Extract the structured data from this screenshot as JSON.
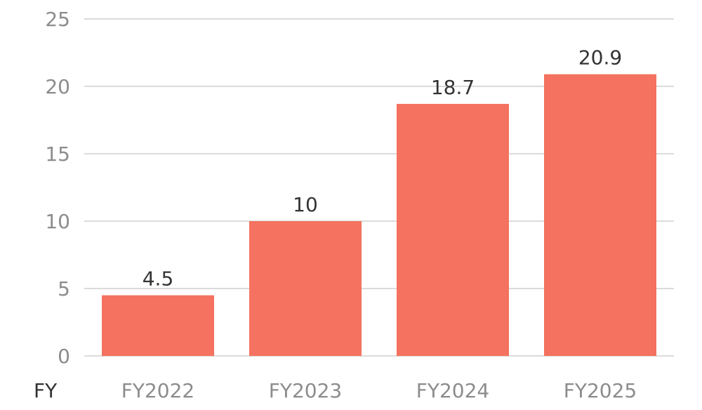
{
  "chart_data": {
    "type": "bar",
    "categories": [
      "FY2022",
      "FY2023",
      "FY2024",
      "FY2025"
    ],
    "values": [
      4.5,
      10,
      18.7,
      20.9
    ],
    "data_labels": [
      "4.5",
      "10",
      "18.7",
      "20.9"
    ],
    "title": "",
    "xlabel": "FY",
    "ylabel": "",
    "ylim": [
      0,
      25
    ],
    "yticks": [
      "0",
      "5",
      "10",
      "15",
      "20",
      "25"
    ],
    "grid": true,
    "legend": "none",
    "bar_color": "#f4725f"
  }
}
